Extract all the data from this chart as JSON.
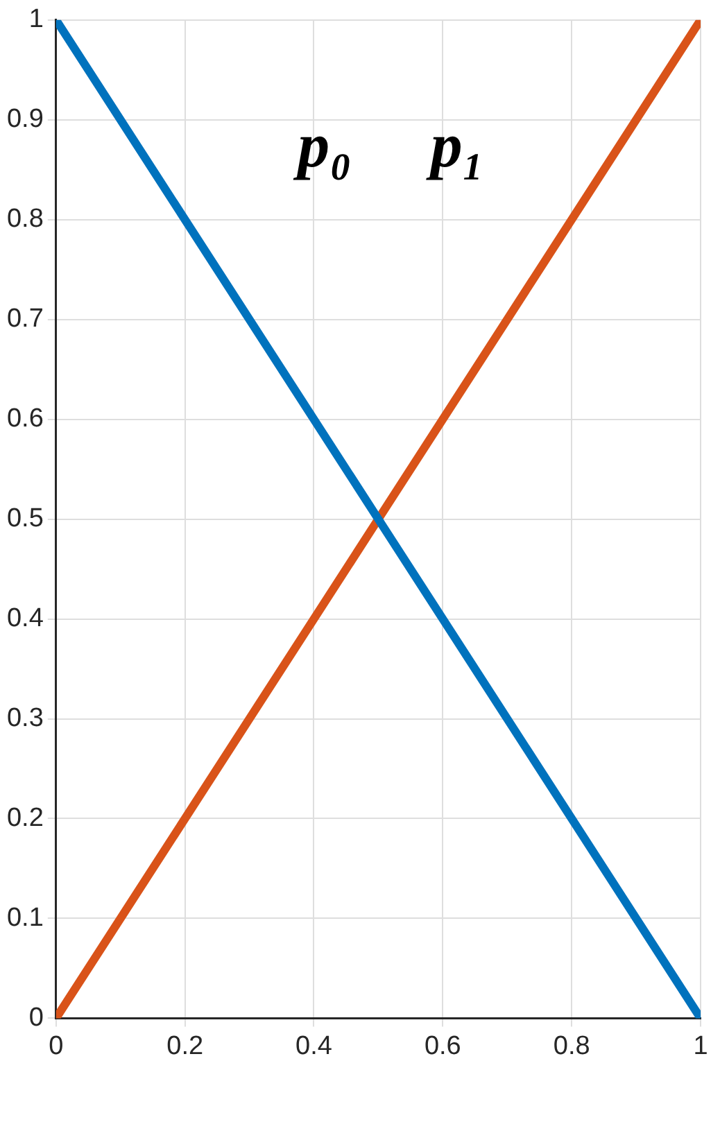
{
  "chart_data": {
    "type": "line",
    "x": [
      0,
      1
    ],
    "series": [
      {
        "name": "p₀",
        "color": "#0072bd",
        "values": [
          1,
          0
        ]
      },
      {
        "name": "p₁",
        "color": "#d95319",
        "values": [
          0,
          1
        ]
      }
    ],
    "xlim": [
      0,
      1
    ],
    "xticks": [
      0,
      0.2,
      0.4,
      0.6,
      0.8,
      1
    ],
    "ylim": [
      0,
      1
    ],
    "yticks": [
      0,
      0.1,
      0.2,
      0.3,
      0.4,
      0.5,
      0.6,
      0.7,
      0.8,
      0.9,
      1
    ],
    "grid": true,
    "legend": false,
    "marker": "none",
    "line_style": "solid"
  }
}
